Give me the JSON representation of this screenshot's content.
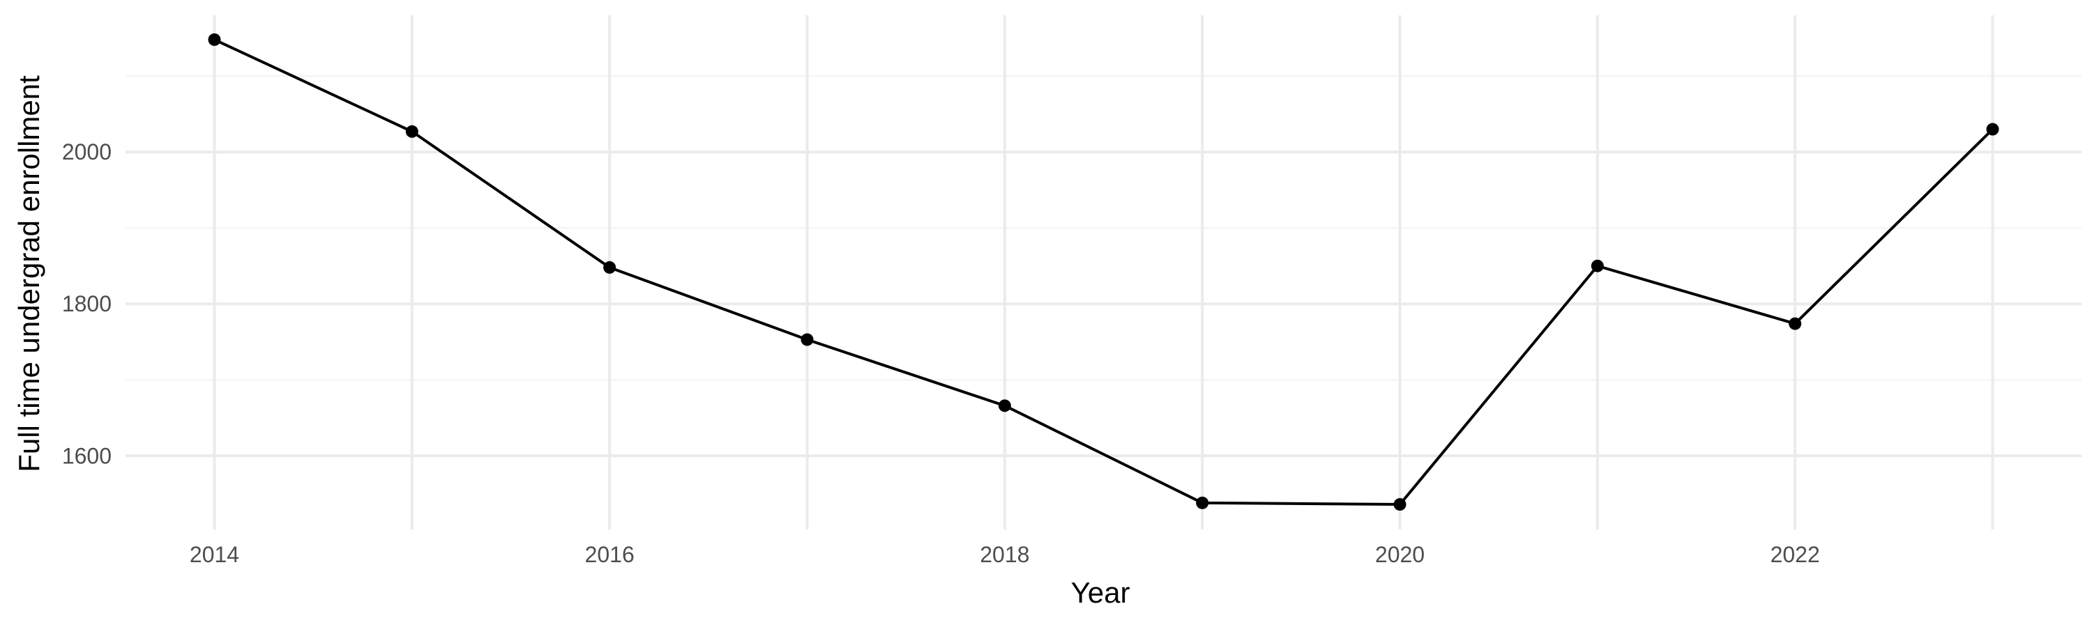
{
  "chart_data": {
    "type": "line",
    "title": "",
    "xlabel": "Year",
    "ylabel": "Full time undergrad enrollment",
    "x": [
      2014,
      2015,
      2016,
      2017,
      2018,
      2019,
      2020,
      2021,
      2022,
      2023
    ],
    "series": [
      {
        "values": [
          2148,
          2027,
          1848,
          1753,
          1666,
          1538,
          1536,
          1850,
          1774,
          2030
        ]
      }
    ],
    "xlim": [
      2013.55,
      2023.45
    ],
    "ylim": [
      1503,
      2180
    ],
    "x_major_ticks": [
      2014,
      2016,
      2018,
      2020,
      2022
    ],
    "x_minor_ticks": [
      2015,
      2017,
      2019,
      2021,
      2023
    ],
    "y_major_ticks": [
      1600,
      1800,
      2000
    ],
    "y_minor_ticks": [
      1700,
      1900,
      2100
    ],
    "x_tick_labels": [
      "2014",
      "2016",
      "2018",
      "2020",
      "2022"
    ],
    "y_tick_labels": [
      "1600",
      "1800",
      "2000"
    ],
    "grid": true,
    "legend": "none",
    "line_color": "#000000",
    "point_color": "#000000",
    "grid_color": "#ebebeb",
    "background_color": "#ffffff"
  }
}
